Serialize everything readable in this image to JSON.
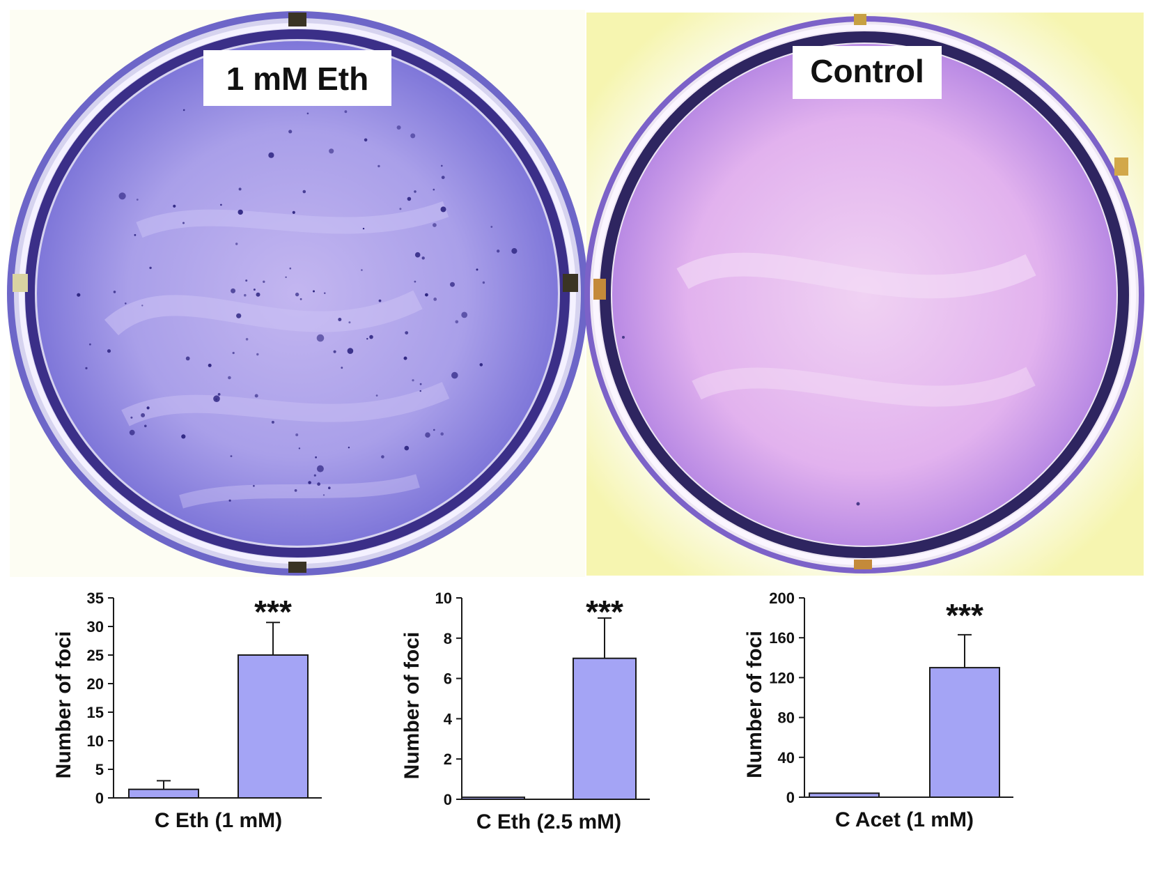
{
  "plates": [
    {
      "label": "1 mM Eth"
    },
    {
      "label": "Control"
    }
  ],
  "colors": {
    "bar_fill": "#a4a4f5",
    "bar_stroke": "#1a1a1a",
    "axis": "#1a1a1a",
    "plate_treated": "#8f8fe0",
    "plate_control": "#e4b4ee"
  },
  "chart_data": [
    {
      "type": "bar",
      "categories": [
        "C",
        "Eth (1 mM)"
      ],
      "xlabel": "C Eth (1 mM)",
      "ylabel": "Number of foci",
      "ylim": [
        0,
        35
      ],
      "yticks": [
        0,
        5,
        10,
        15,
        20,
        25,
        30,
        35
      ],
      "values": [
        1.5,
        25
      ],
      "errors": [
        1.5,
        5.7
      ],
      "annotation": "***"
    },
    {
      "type": "bar",
      "categories": [
        "C",
        "Eth (2.5 mM)"
      ],
      "xlabel": "C Eth (2.5 mM)",
      "ylabel": "Number of foci",
      "ylim": [
        0,
        10
      ],
      "yticks": [
        0,
        2,
        4,
        6,
        8,
        10
      ],
      "values": [
        0.1,
        7
      ],
      "errors": [
        0,
        2
      ],
      "annotation": "***"
    },
    {
      "type": "bar",
      "categories": [
        "C",
        "Acet (1 mM)"
      ],
      "xlabel": "C Acet (1 mM)",
      "ylabel": "Number of foci",
      "ylim": [
        0,
        200
      ],
      "yticks": [
        0,
        40,
        80,
        120,
        160,
        200
      ],
      "values": [
        4,
        130
      ],
      "errors": [
        0,
        33
      ],
      "annotation": "***"
    }
  ]
}
